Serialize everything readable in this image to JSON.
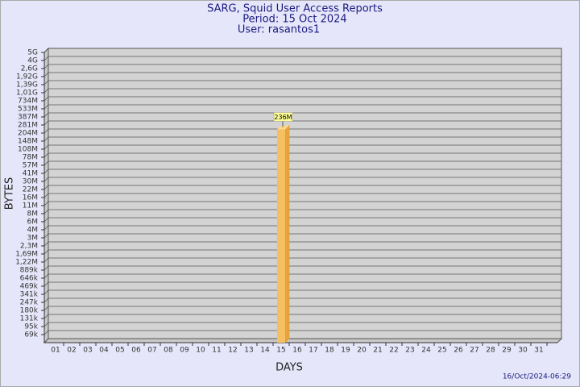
{
  "chart_data": {
    "type": "bar",
    "title": "SARG, Squid User Access Reports",
    "subtitle": "Period: 15 Oct 2024",
    "user": "User: rasantos1",
    "x_label": "DAYS",
    "y_label": "BYTES",
    "timestamp": "16/Oct/2024-06:29",
    "categories": [
      "01",
      "02",
      "03",
      "04",
      "05",
      "06",
      "07",
      "08",
      "09",
      "10",
      "11",
      "12",
      "13",
      "14",
      "15",
      "16",
      "17",
      "18",
      "19",
      "20",
      "21",
      "22",
      "23",
      "24",
      "25",
      "26",
      "27",
      "28",
      "29",
      "30",
      "31"
    ],
    "series": [
      {
        "name": "rasantos1",
        "color": "#f5bf62",
        "values": [
          null,
          null,
          null,
          null,
          null,
          null,
          null,
          null,
          null,
          null,
          null,
          null,
          null,
          null,
          236000000,
          null,
          null,
          null,
          null,
          null,
          null,
          null,
          null,
          null,
          null,
          null,
          null,
          null,
          null,
          null,
          null
        ],
        "value_labels": [
          null,
          null,
          null,
          null,
          null,
          null,
          null,
          null,
          null,
          null,
          null,
          null,
          null,
          null,
          "236M",
          null,
          null,
          null,
          null,
          null,
          null,
          null,
          null,
          null,
          null,
          null,
          null,
          null,
          null,
          null,
          null
        ]
      }
    ],
    "log_scale": true,
    "grid": true,
    "ylim": [
      50000,
      5000000000
    ],
    "yticks": [
      {
        "value": 69000,
        "label": "69k"
      },
      {
        "value": 95000,
        "label": "95k"
      },
      {
        "value": 131000,
        "label": "131k"
      },
      {
        "value": 180000,
        "label": "180k"
      },
      {
        "value": 247000,
        "label": "247k"
      },
      {
        "value": 341000,
        "label": "341k"
      },
      {
        "value": 469000,
        "label": "469k"
      },
      {
        "value": 646000,
        "label": "646k"
      },
      {
        "value": 889000,
        "label": "889k"
      },
      {
        "value": 1220000,
        "label": "1,22M"
      },
      {
        "value": 1690000,
        "label": "1,69M"
      },
      {
        "value": 2300000,
        "label": "2,3M"
      },
      {
        "value": 3000000,
        "label": "3M"
      },
      {
        "value": 4000000,
        "label": "4M"
      },
      {
        "value": 6000000,
        "label": "6M"
      },
      {
        "value": 8000000,
        "label": "8M"
      },
      {
        "value": 11000000,
        "label": "11M"
      },
      {
        "value": 16000000,
        "label": "16M"
      },
      {
        "value": 22000000,
        "label": "22M"
      },
      {
        "value": 30000000,
        "label": "30M"
      },
      {
        "value": 41000000,
        "label": "41M"
      },
      {
        "value": 57000000,
        "label": "57M"
      },
      {
        "value": 78000000,
        "label": "78M"
      },
      {
        "value": 108000000,
        "label": "108M"
      },
      {
        "value": 148000000,
        "label": "148M"
      },
      {
        "value": 204000000,
        "label": "204M"
      },
      {
        "value": 281000000,
        "label": "281M"
      },
      {
        "value": 387000000,
        "label": "387M"
      },
      {
        "value": 533000000,
        "label": "533M"
      },
      {
        "value": 734000000,
        "label": "734M"
      },
      {
        "value": 1010000000,
        "label": "1,01G"
      },
      {
        "value": 1390000000,
        "label": "1,39G"
      },
      {
        "value": 1920000000,
        "label": "1,92G"
      },
      {
        "value": 2600000000,
        "label": "2,6G"
      },
      {
        "value": 4000000000,
        "label": "4G"
      },
      {
        "value": 5000000000,
        "label": "5G"
      }
    ]
  }
}
